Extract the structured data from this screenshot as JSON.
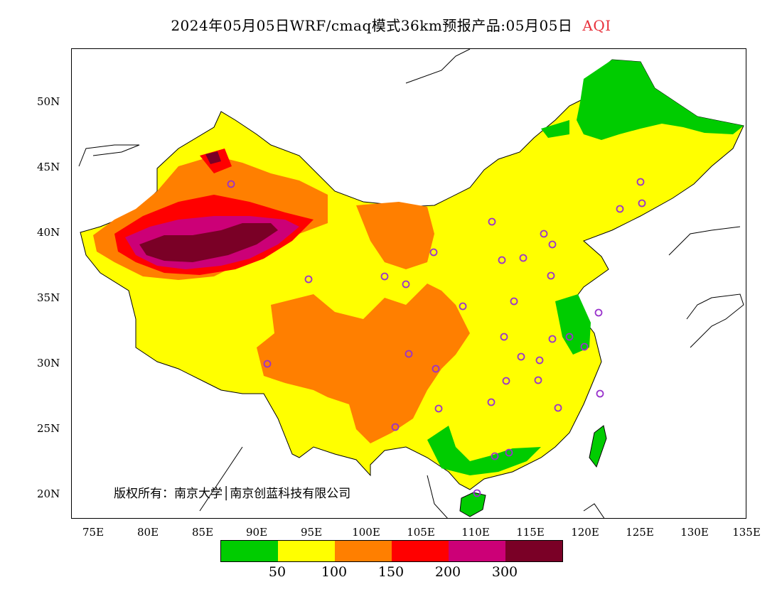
{
  "title": {
    "main": "2024年05月05日WRF/cmaq模式36km预报产品:05月05日",
    "variable": "AQI",
    "variable_color": "#e8303a"
  },
  "axes": {
    "y_labels": [
      "50N",
      "45N",
      "40N",
      "35N",
      "30N",
      "25N",
      "20N"
    ],
    "x_labels": [
      "75E",
      "80E",
      "85E",
      "90E",
      "95E",
      "100E",
      "105E",
      "110E",
      "115E",
      "120E",
      "125E",
      "130E",
      "135E"
    ]
  },
  "copyright": "版权所有：南京大学│南京创蓝科技有限公司",
  "legend": {
    "colors": [
      "#00cc00",
      "#ffff00",
      "#ff7f00",
      "#ff0000",
      "#cc0077",
      "#7a0026"
    ],
    "labels": [
      "50",
      "100",
      "150",
      "200",
      "300"
    ]
  },
  "palette": {
    "green": "#00cc00",
    "yellow": "#ffff00",
    "orange": "#ff7f00",
    "red": "#ff0000",
    "magenta": "#cc0077",
    "maroon": "#7a0026",
    "station_marker": "#9933cc"
  },
  "stations": {
    "count": 36
  }
}
